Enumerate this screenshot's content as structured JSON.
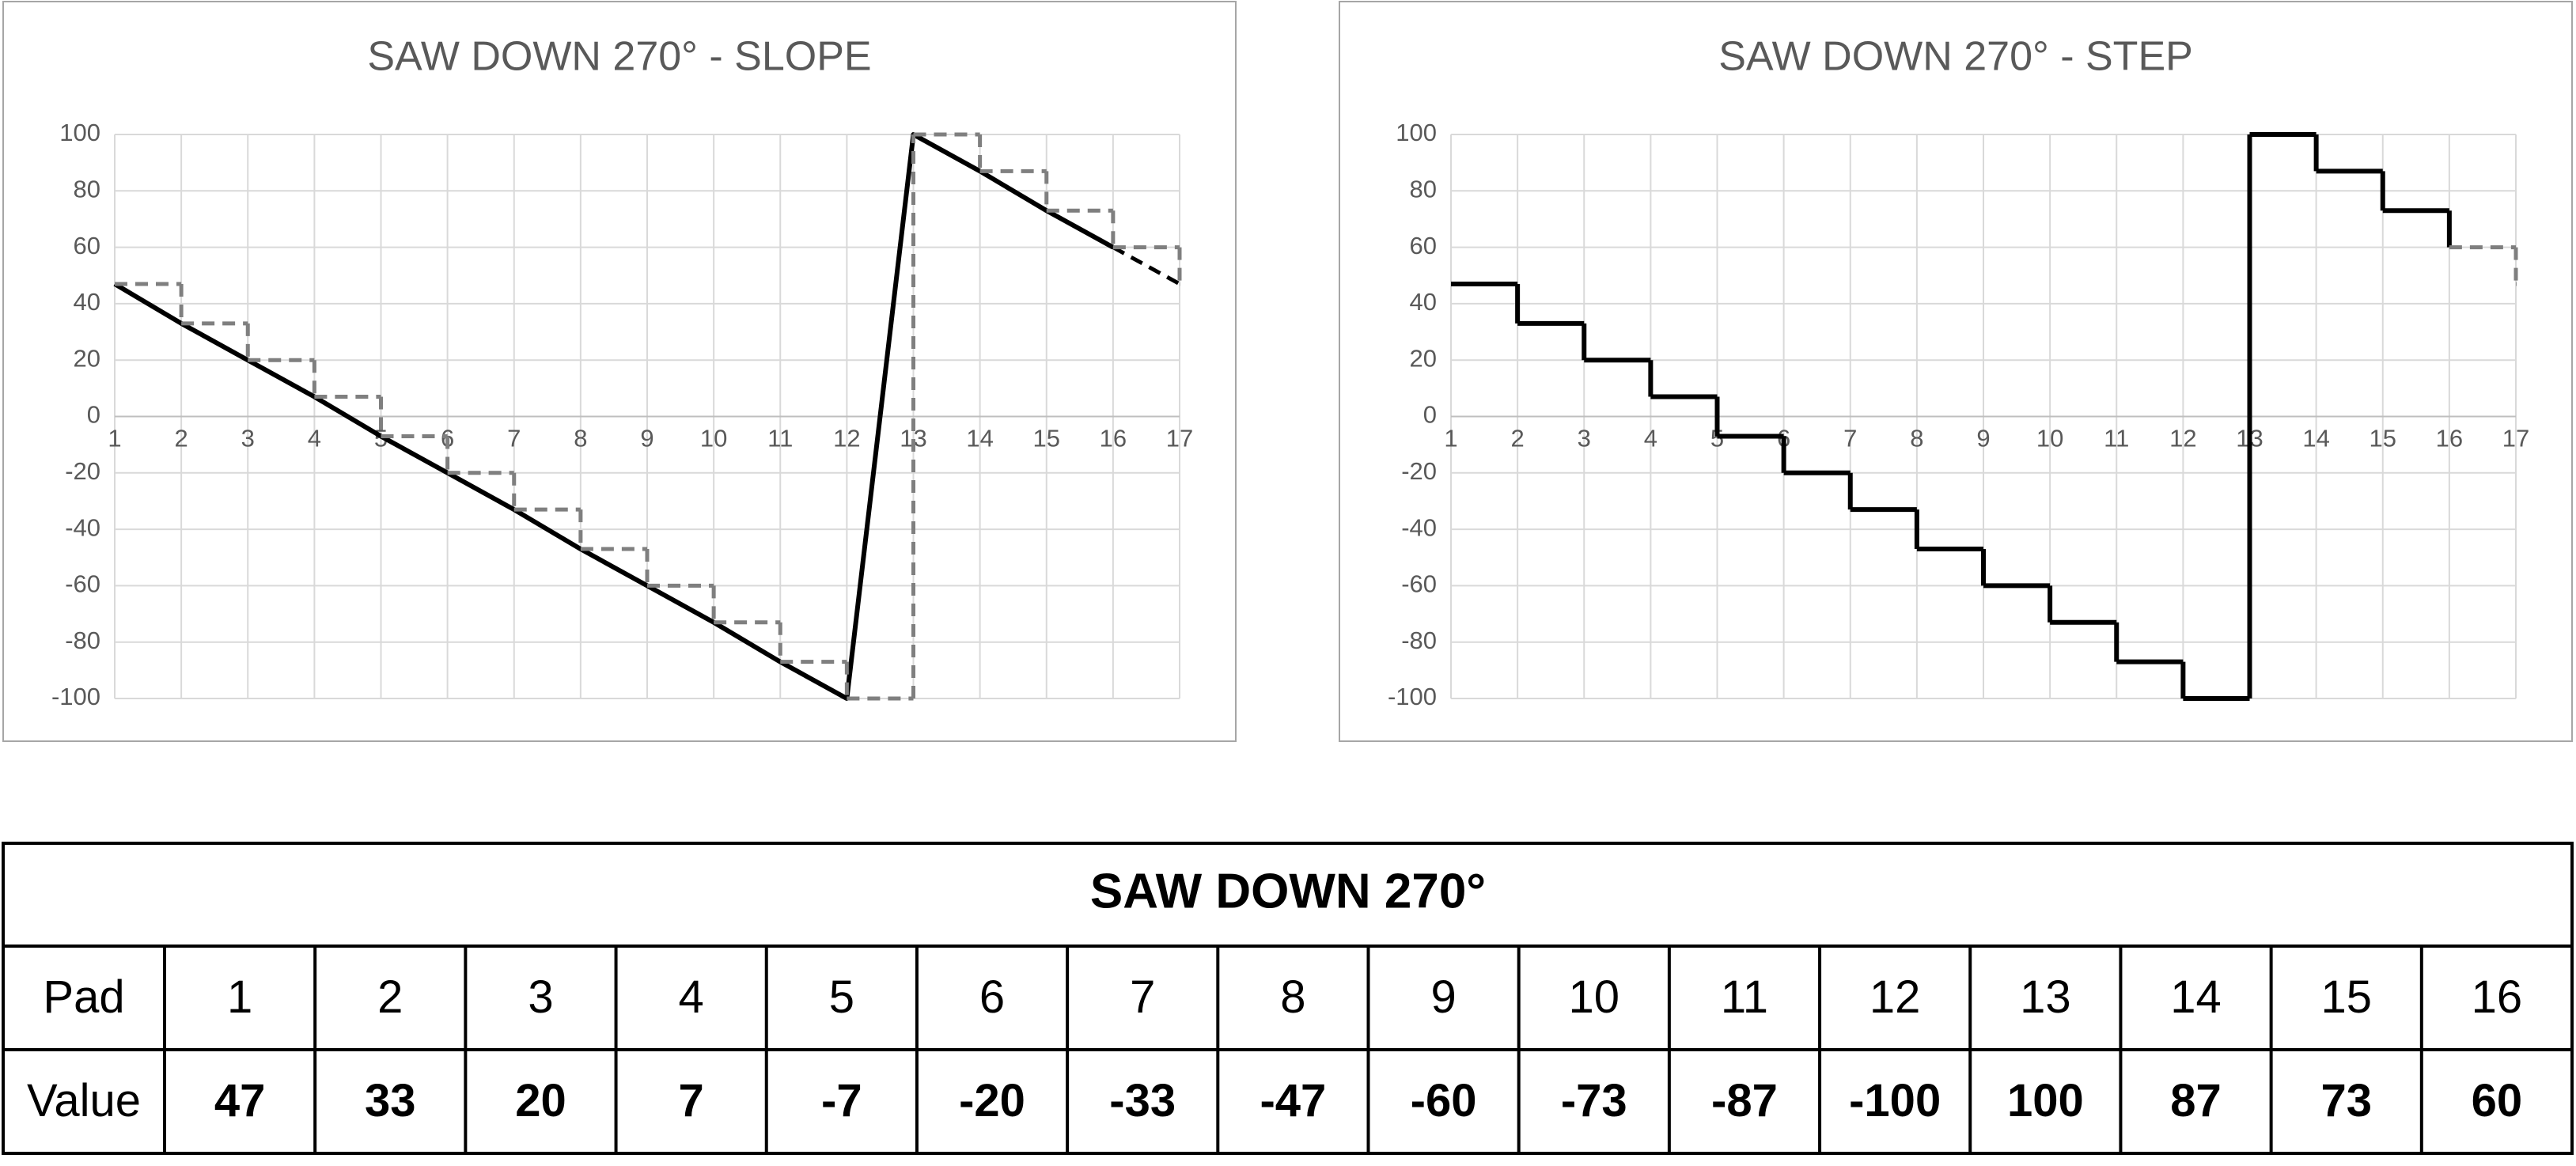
{
  "chart_data": [
    {
      "type": "line",
      "title": "SAW DOWN 270° - SLOPE",
      "x": [
        1,
        2,
        3,
        4,
        5,
        6,
        7,
        8,
        9,
        10,
        11,
        12,
        13,
        14,
        15,
        16,
        17
      ],
      "series": [
        {
          "color": "#000000",
          "dash": false,
          "step": false,
          "values": [
            47,
            33,
            20,
            7,
            -7,
            -20,
            -33,
            -47,
            -60,
            -73,
            -87,
            -100,
            100,
            87,
            73,
            60,
            null
          ]
        },
        {
          "color": "#000000",
          "dash": true,
          "step": false,
          "values": [
            null,
            null,
            null,
            null,
            null,
            null,
            null,
            null,
            null,
            null,
            null,
            null,
            null,
            null,
            null,
            60,
            47
          ]
        },
        {
          "color": "#7f7f7f",
          "dash": true,
          "step": true,
          "values": [
            47,
            33,
            20,
            7,
            -7,
            -20,
            -33,
            -47,
            -60,
            -73,
            -87,
            -100,
            100,
            87,
            73,
            60,
            47
          ]
        }
      ],
      "xlim": [
        1,
        17
      ],
      "xticks": [
        1,
        2,
        3,
        4,
        5,
        6,
        7,
        8,
        9,
        10,
        11,
        12,
        13,
        14,
        15,
        16,
        17
      ],
      "ylim": [
        -100,
        100
      ],
      "yticks": [
        -100,
        -80,
        -60,
        -40,
        -20,
        0,
        20,
        40,
        60,
        80,
        100
      ],
      "grid": true
    },
    {
      "type": "line",
      "title": "SAW DOWN 270° - STEP",
      "x": [
        1,
        2,
        3,
        4,
        5,
        6,
        7,
        8,
        9,
        10,
        11,
        12,
        13,
        14,
        15,
        16,
        17
      ],
      "series": [
        {
          "color": "#000000",
          "dash": false,
          "step": true,
          "values": [
            47,
            33,
            20,
            7,
            -7,
            -20,
            -33,
            -47,
            -60,
            -73,
            -87,
            -100,
            100,
            87,
            73,
            60,
            null
          ]
        },
        {
          "color": "#7f7f7f",
          "dash": true,
          "step": true,
          "values": [
            null,
            null,
            null,
            null,
            null,
            null,
            null,
            null,
            null,
            null,
            null,
            null,
            null,
            null,
            null,
            60,
            47
          ]
        }
      ],
      "xlim": [
        1,
        17
      ],
      "xticks": [
        1,
        2,
        3,
        4,
        5,
        6,
        7,
        8,
        9,
        10,
        11,
        12,
        13,
        14,
        15,
        16,
        17
      ],
      "ylim": [
        -100,
        100
      ],
      "yticks": [
        -100,
        -80,
        -60,
        -40,
        -20,
        0,
        20,
        40,
        60,
        80,
        100
      ],
      "grid": true
    }
  ],
  "table": {
    "title": "SAW DOWN 270°",
    "rows": [
      [
        "Pad",
        "1",
        "2",
        "3",
        "4",
        "5",
        "6",
        "7",
        "8",
        "9",
        "10",
        "11",
        "12",
        "13",
        "14",
        "15",
        "16"
      ],
      [
        "Value",
        "47",
        "33",
        "20",
        "7",
        "-7",
        "-20",
        "-33",
        "-47",
        "-60",
        "-73",
        "-87",
        "-100",
        "100",
        "87",
        "73",
        "60"
      ]
    ]
  }
}
